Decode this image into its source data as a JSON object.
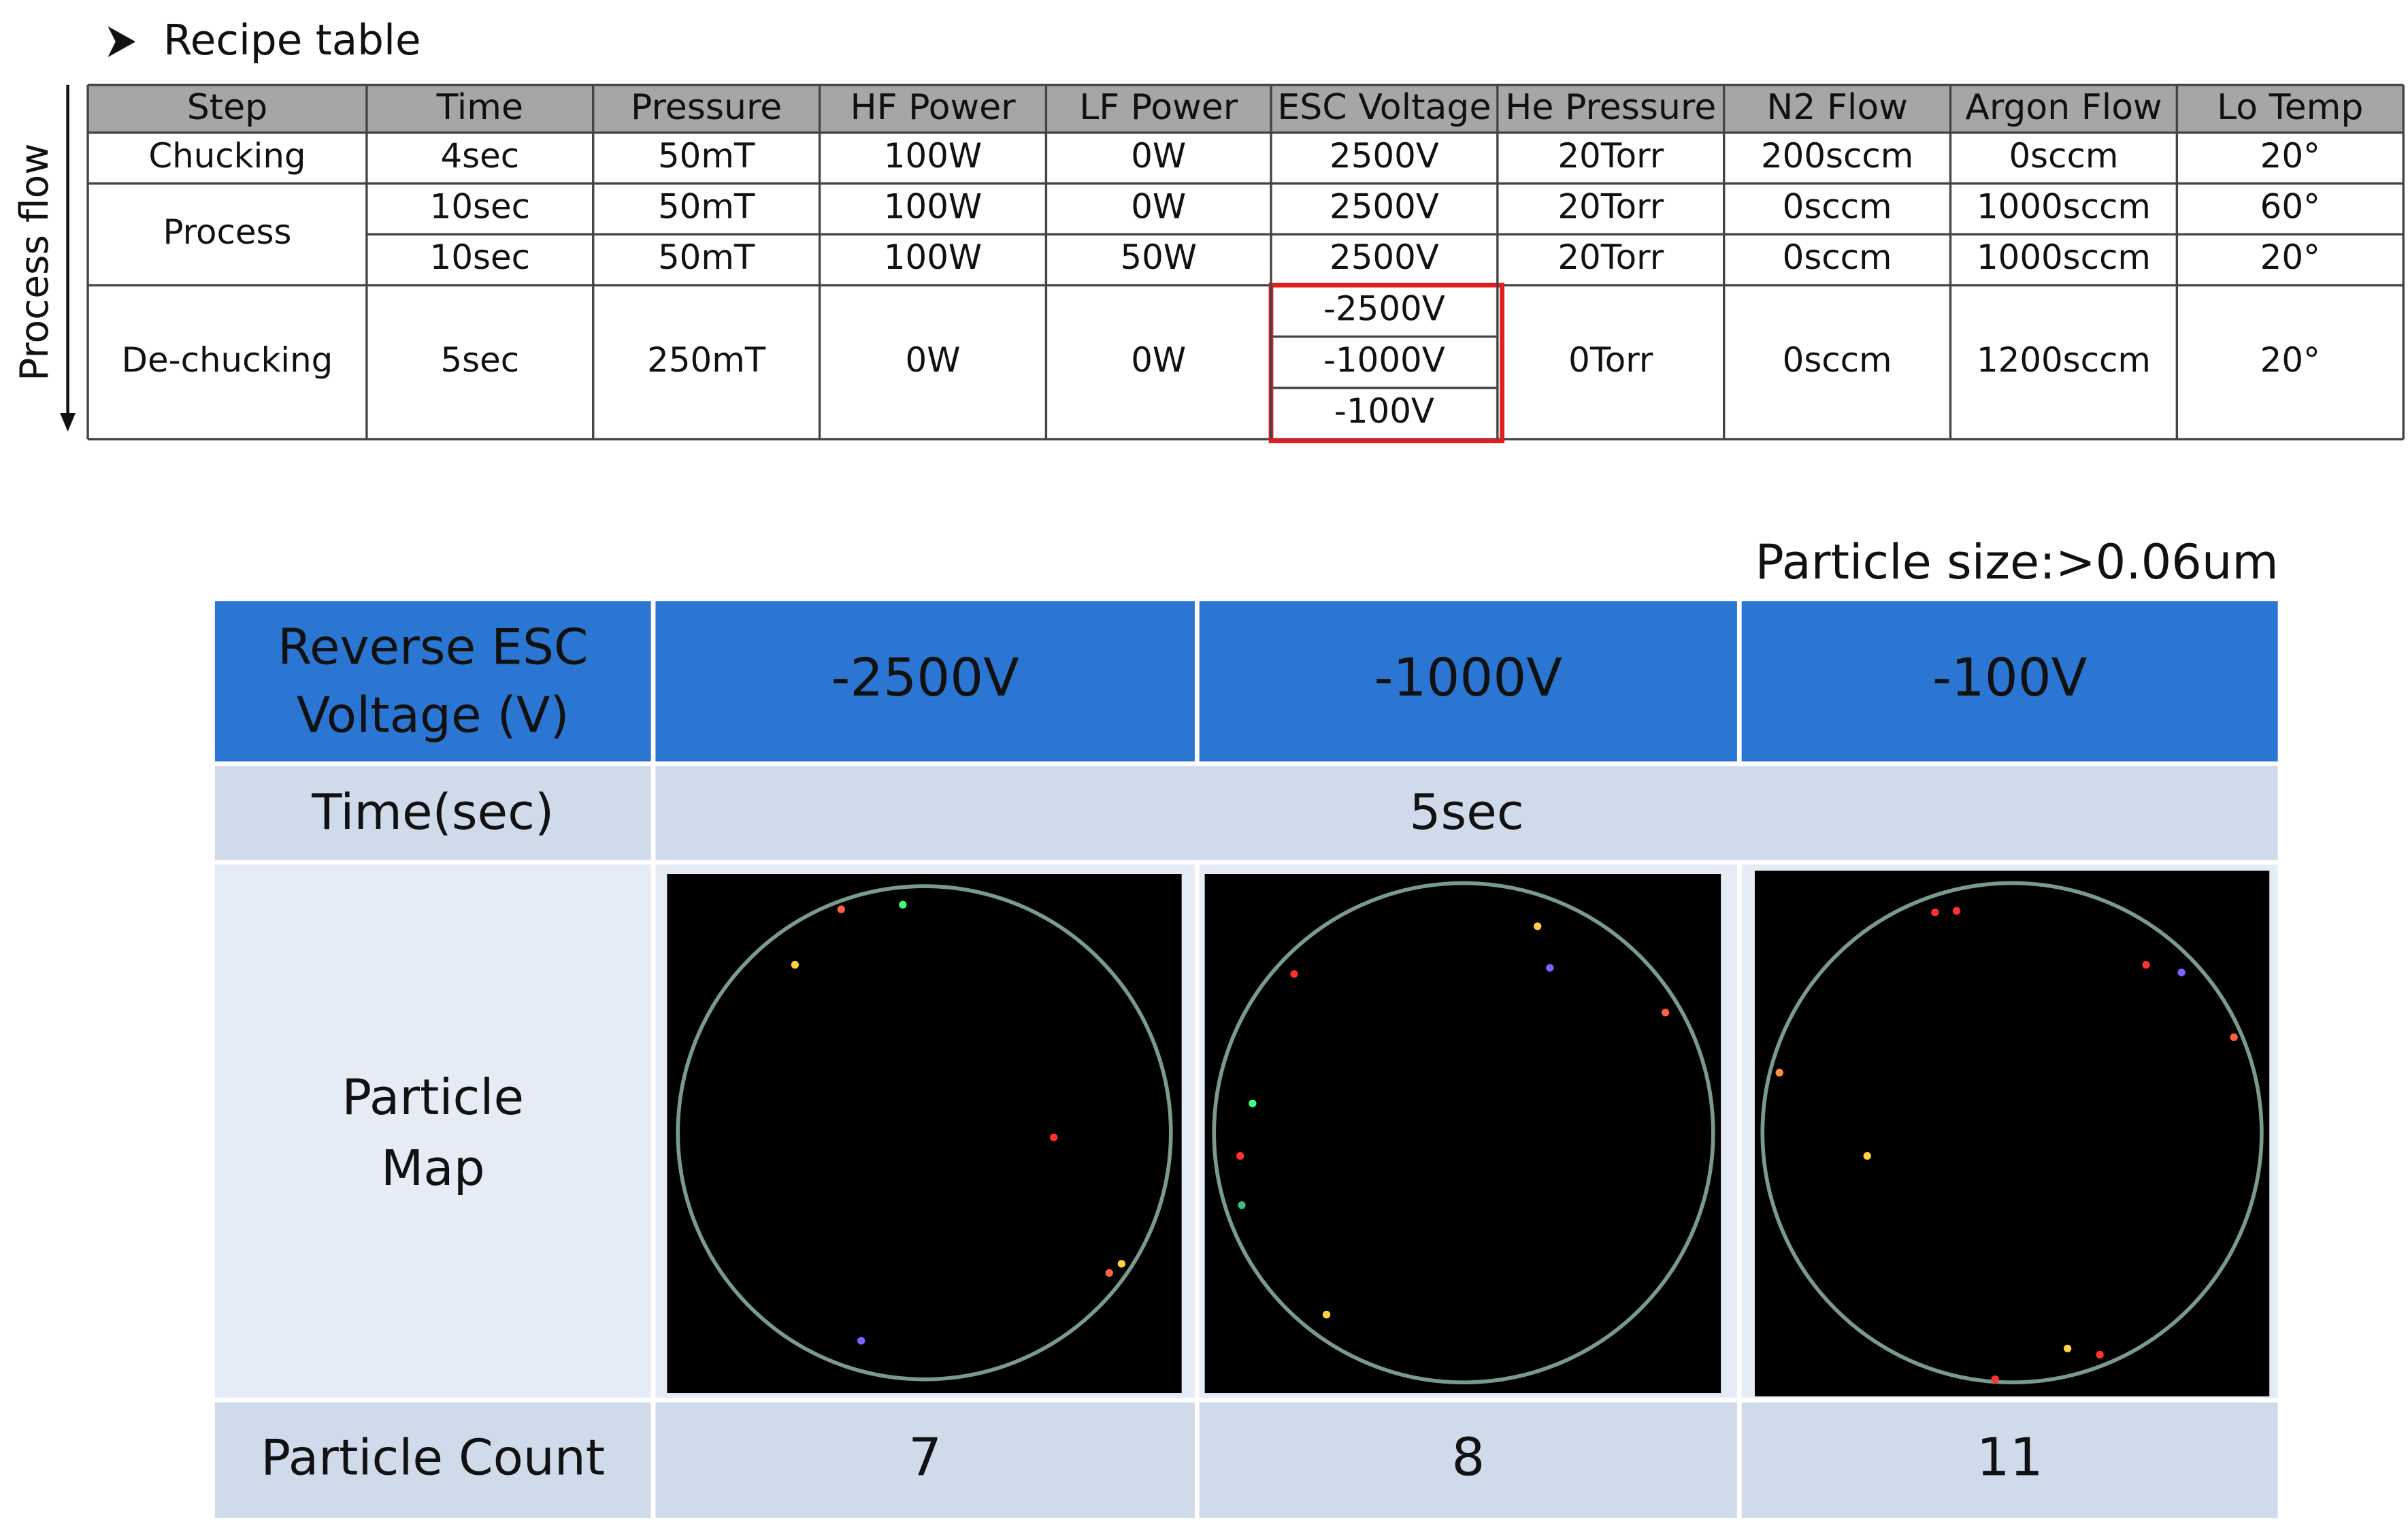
{
  "header": {
    "title": "Recipe table",
    "side_label": "Process flow"
  },
  "recipe_table": {
    "columns": [
      "Step",
      "Time",
      "Pressure",
      "HF Power",
      "LF Power",
      "ESC Voltage",
      "He Pressure",
      "N2 Flow",
      "Argon Flow",
      "Lo Temp"
    ],
    "rows": [
      {
        "step": "Chucking",
        "lines": [
          [
            "4sec",
            "50mT",
            "100W",
            "0W",
            "2500V",
            "20Torr",
            "200sccm",
            "0sccm",
            "20°"
          ]
        ]
      },
      {
        "step": "Process",
        "lines": [
          [
            "10sec",
            "50mT",
            "100W",
            "0W",
            "2500V",
            "20Torr",
            "0sccm",
            "1000sccm",
            "60°"
          ],
          [
            "10sec",
            "50mT",
            "100W",
            "50W",
            "2500V",
            "20Torr",
            "0sccm",
            "1000sccm",
            "20°"
          ]
        ]
      },
      {
        "step": "De-chucking",
        "lines": [
          [
            "5sec",
            "250mT",
            "0W",
            "0W",
            [
              "-2500V",
              "-1000V",
              "-100V"
            ],
            "0Torr",
            "0sccm",
            "1200sccm",
            "20°"
          ]
        ]
      }
    ]
  },
  "results": {
    "note": "Particle size:>0.06um",
    "header_label": [
      "Reverse ESC",
      "Voltage (V)"
    ],
    "voltages": [
      "-2500V",
      "-1000V",
      "-100V"
    ],
    "time_label": "Time(sec)",
    "time": "5sec",
    "map_label": [
      "Particle",
      "Map"
    ],
    "count_label": "Particle Count",
    "counts": [
      7,
      8,
      11
    ]
  }
}
